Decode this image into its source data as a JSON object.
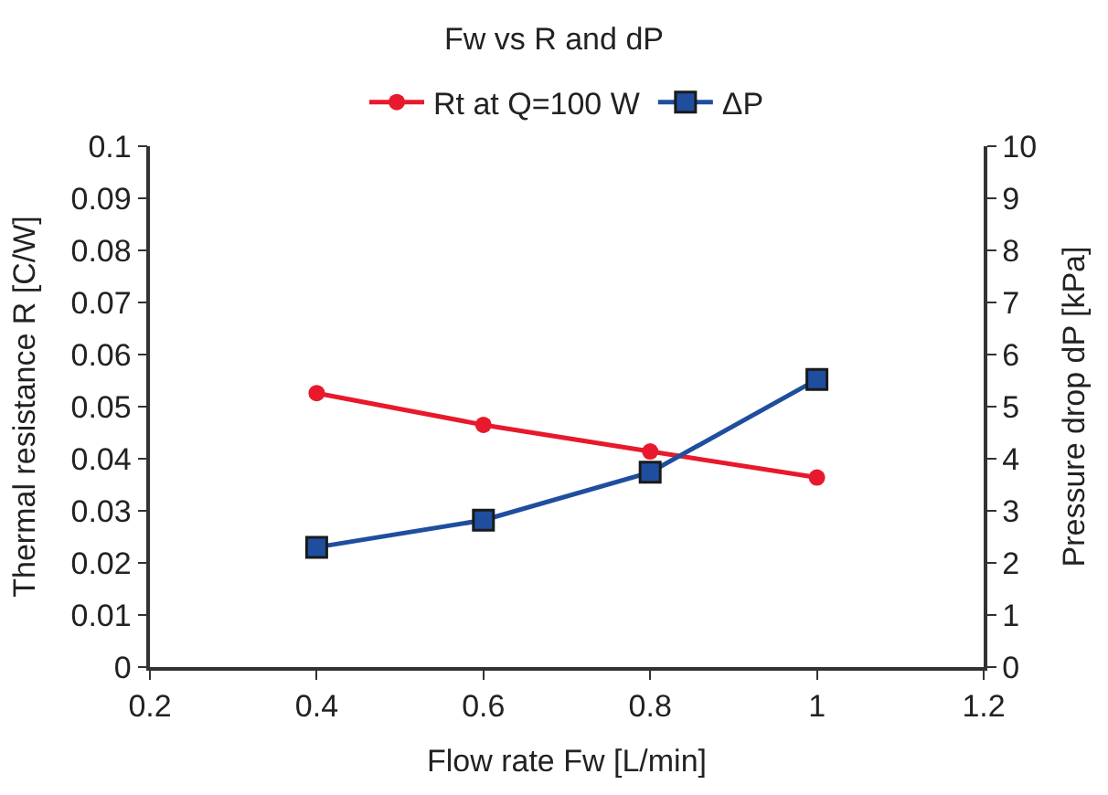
{
  "chart_data": {
    "type": "line",
    "title": "Fw vs R and dP",
    "xlabel": "Flow rate Fw [L/min]",
    "ylabel": "Thermal resistance R [C/W]",
    "y2label": "Pressure drop dP [kPa]",
    "x": [
      0.4,
      0.6,
      0.8,
      1.0
    ],
    "series": [
      {
        "name": "Rt at Q=100 W",
        "color": "#e8192c",
        "marker": "circle",
        "values": [
          0.0526,
          0.0465,
          0.0414,
          0.0364
        ]
      },
      {
        "name": "ΔP",
        "color": "#1f4e9e",
        "marker": "square",
        "axis": "y2",
        "values": [
          2.3,
          2.82,
          3.74,
          5.52
        ]
      }
    ],
    "xlim": [
      0.2,
      1.2
    ],
    "xticks": [
      0.2,
      0.4,
      0.6,
      0.8,
      1,
      1.2
    ],
    "ylim": [
      0,
      0.1
    ],
    "yticks": [
      0,
      0.01,
      0.02,
      0.03,
      0.04,
      0.05,
      0.06,
      0.07,
      0.08,
      0.09,
      0.1
    ],
    "y2lim": [
      0,
      10
    ],
    "y2ticks": [
      0,
      1,
      2,
      3,
      4,
      5,
      6,
      7,
      8,
      9,
      10
    ],
    "legend": "top",
    "line_style": "solid"
  }
}
